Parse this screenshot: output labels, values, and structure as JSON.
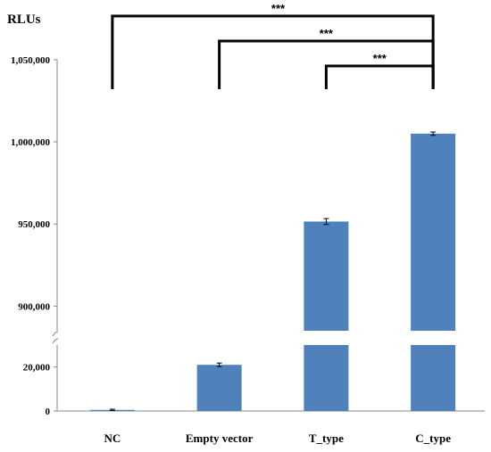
{
  "chart_data": {
    "type": "bar",
    "ylabel": "RLUs",
    "categories": [
      "NC",
      "Empty vector",
      "T_type",
      "C_type"
    ],
    "values": [
      500,
      21000,
      951500,
      1005000
    ],
    "errors": [
      300,
      800,
      1800,
      1000
    ],
    "bar_color": "#4f81bd",
    "axis_break": true,
    "lower_segment": {
      "range": [
        0,
        30000
      ],
      "ticks": [
        0,
        20000
      ],
      "tick_labels": [
        "0",
        "20,000"
      ]
    },
    "upper_segment": {
      "range": [
        885000,
        1050000
      ],
      "ticks": [
        900000,
        950000,
        1000000,
        1050000
      ],
      "tick_labels": [
        "900,000",
        "950,000",
        "1,000,000",
        "1,050,000"
      ]
    },
    "significance": [
      {
        "from": "NC",
        "to": "C_type",
        "label": "***"
      },
      {
        "from": "Empty vector",
        "to": "C_type",
        "label": "***"
      },
      {
        "from": "T_type",
        "to": "C_type",
        "label": "***"
      }
    ],
    "grid": false,
    "legend": "none"
  }
}
